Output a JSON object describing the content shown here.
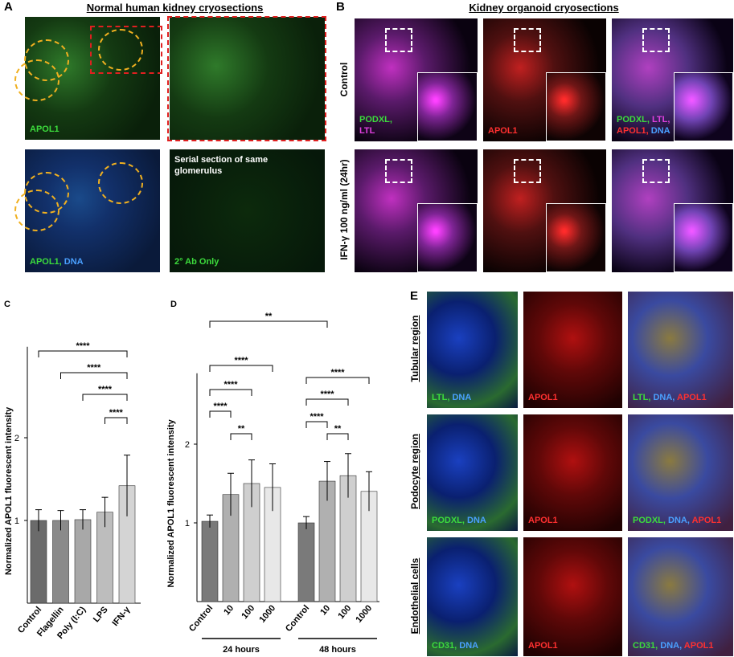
{
  "figure": {
    "panel_a": {
      "letter": "A",
      "title": "Normal human kidney cryosections",
      "images": [
        {
          "labels": [
            [
              {
                "text": "APOL1",
                "color": "#3cdc3c"
              }
            ]
          ]
        },
        {},
        {
          "labels": [
            [
              {
                "text": "APOL1, ",
                "color": "#3cdc3c"
              },
              {
                "text": "DNA",
                "color": "#4aa0ff"
              }
            ]
          ]
        },
        {
          "caption": "Serial section of same glomerulus",
          "labels": [
            [
              {
                "text": "2° Ab Only",
                "color": "#3cdc3c"
              }
            ]
          ]
        }
      ]
    },
    "panel_b": {
      "letter": "B",
      "title": "Kidney organoid cryosections",
      "rows": [
        "Control",
        "IFN-γ 100 ng/ml (24hr)"
      ],
      "images": [
        {
          "labels": [
            [
              {
                "text": "PODXL,",
                "color": "#3cdc3c"
              }
            ],
            [
              {
                "text": "LTL",
                "color": "#e040e0"
              }
            ]
          ]
        },
        {
          "labels": [
            [
              {
                "text": "APOL1",
                "color": "#ff3030"
              }
            ]
          ]
        },
        {
          "labels": [
            [
              {
                "text": "PODXL, ",
                "color": "#3cdc3c"
              },
              {
                "text": "LTL,",
                "color": "#e040e0"
              }
            ],
            [
              {
                "text": "APOL1, ",
                "color": "#ff3030"
              },
              {
                "text": "DNA",
                "color": "#4aa0ff"
              }
            ]
          ]
        },
        {},
        {},
        {}
      ]
    },
    "panel_e": {
      "letter": "E",
      "rows": [
        "Tubular region",
        "Podocyte region",
        "Endothelial cells"
      ],
      "images": [
        {
          "labels": [
            [
              {
                "text": "LTL, ",
                "color": "#3cdc3c"
              },
              {
                "text": "DNA",
                "color": "#4aa0ff"
              }
            ]
          ]
        },
        {
          "labels": [
            [
              {
                "text": "APOL1",
                "color": "#ff3030"
              }
            ]
          ]
        },
        {
          "labels": [
            [
              {
                "text": "LTL, ",
                "color": "#3cdc3c"
              },
              {
                "text": "DNA, ",
                "color": "#4aa0ff"
              },
              {
                "text": "APOL1",
                "color": "#ff3030"
              }
            ]
          ]
        },
        {
          "labels": [
            [
              {
                "text": "PODXL, ",
                "color": "#3cdc3c"
              },
              {
                "text": "DNA",
                "color": "#4aa0ff"
              }
            ]
          ]
        },
        {
          "labels": [
            [
              {
                "text": "APOL1",
                "color": "#ff3030"
              }
            ]
          ]
        },
        {
          "labels": [
            [
              {
                "text": "PODXL, ",
                "color": "#3cdc3c"
              },
              {
                "text": "DNA, ",
                "color": "#4aa0ff"
              },
              {
                "text": "APOL1",
                "color": "#ff3030"
              }
            ]
          ]
        },
        {
          "labels": [
            [
              {
                "text": "CD31, ",
                "color": "#3cdc3c"
              },
              {
                "text": "DNA",
                "color": "#4aa0ff"
              }
            ]
          ]
        },
        {
          "labels": [
            [
              {
                "text": "APOL1",
                "color": "#ff3030"
              }
            ]
          ]
        },
        {
          "labels": [
            [
              {
                "text": "CD31, ",
                "color": "#3cdc3c"
              },
              {
                "text": "DNA, ",
                "color": "#4aa0ff"
              },
              {
                "text": "APOL1",
                "color": "#ff3030"
              }
            ]
          ]
        }
      ]
    }
  },
  "chart_data": [
    {
      "type": "bar",
      "panel": "C",
      "ylabel": "Normalized APOL1 fluorescent intensity",
      "categories": [
        "Control",
        "Flagellin",
        "Poly (I:C)",
        "LPS",
        "IFN-γ"
      ],
      "values": [
        1.0,
        1.0,
        1.01,
        1.1,
        1.42
      ],
      "errors": [
        0.13,
        0.12,
        0.12,
        0.18,
        0.37
      ],
      "colors": [
        "#6b6b6b",
        "#8a8a8a",
        "#a8a8a8",
        "#bdbdbd",
        "#d4d4d4"
      ],
      "ylim": [
        0,
        3.1
      ],
      "yticks": [
        1,
        2
      ],
      "comparisons": [
        {
          "from": 0,
          "to": 4,
          "label": "****"
        },
        {
          "from": 1,
          "to": 4,
          "label": "****"
        },
        {
          "from": 2,
          "to": 4,
          "label": "****"
        },
        {
          "from": 3,
          "to": 4,
          "label": "****"
        }
      ]
    },
    {
      "type": "bar",
      "panel": "D",
      "ylabel": "Normalized APOL1 fluorescent intensity",
      "categories": [
        "Control",
        "10",
        "100",
        "1000",
        "Control",
        "10",
        "100",
        "1000"
      ],
      "values": [
        1.02,
        1.36,
        1.5,
        1.45,
        1.0,
        1.53,
        1.6,
        1.4
      ],
      "errors": [
        0.08,
        0.27,
        0.3,
        0.3,
        0.08,
        0.25,
        0.28,
        0.25
      ],
      "colors": [
        "#7a7a7a",
        "#b0b0b0",
        "#cfcfcf",
        "#e8e8e8",
        "#7a7a7a",
        "#b0b0b0",
        "#cfcfcf",
        "#e8e8e8"
      ],
      "ylim": [
        0,
        2.9
      ],
      "yticks": [
        1,
        2
      ],
      "groups": [
        {
          "label": "24 hours",
          "from": 0,
          "to": 3
        },
        {
          "label": "48 hours",
          "from": 4,
          "to": 7
        }
      ],
      "comparisons": [
        {
          "from": 0,
          "to": 5,
          "label": "**"
        },
        {
          "from": 0,
          "to": 3,
          "label": "****"
        },
        {
          "from": 0,
          "to": 2,
          "label": "****"
        },
        {
          "from": 0,
          "to": 1,
          "label": "****"
        },
        {
          "from": 1,
          "to": 2,
          "label": "**"
        },
        {
          "from": 4,
          "to": 7,
          "label": "****"
        },
        {
          "from": 4,
          "to": 6,
          "label": "****"
        },
        {
          "from": 4,
          "to": 5,
          "label": "****"
        },
        {
          "from": 5,
          "to": 6,
          "label": "**"
        }
      ]
    }
  ]
}
